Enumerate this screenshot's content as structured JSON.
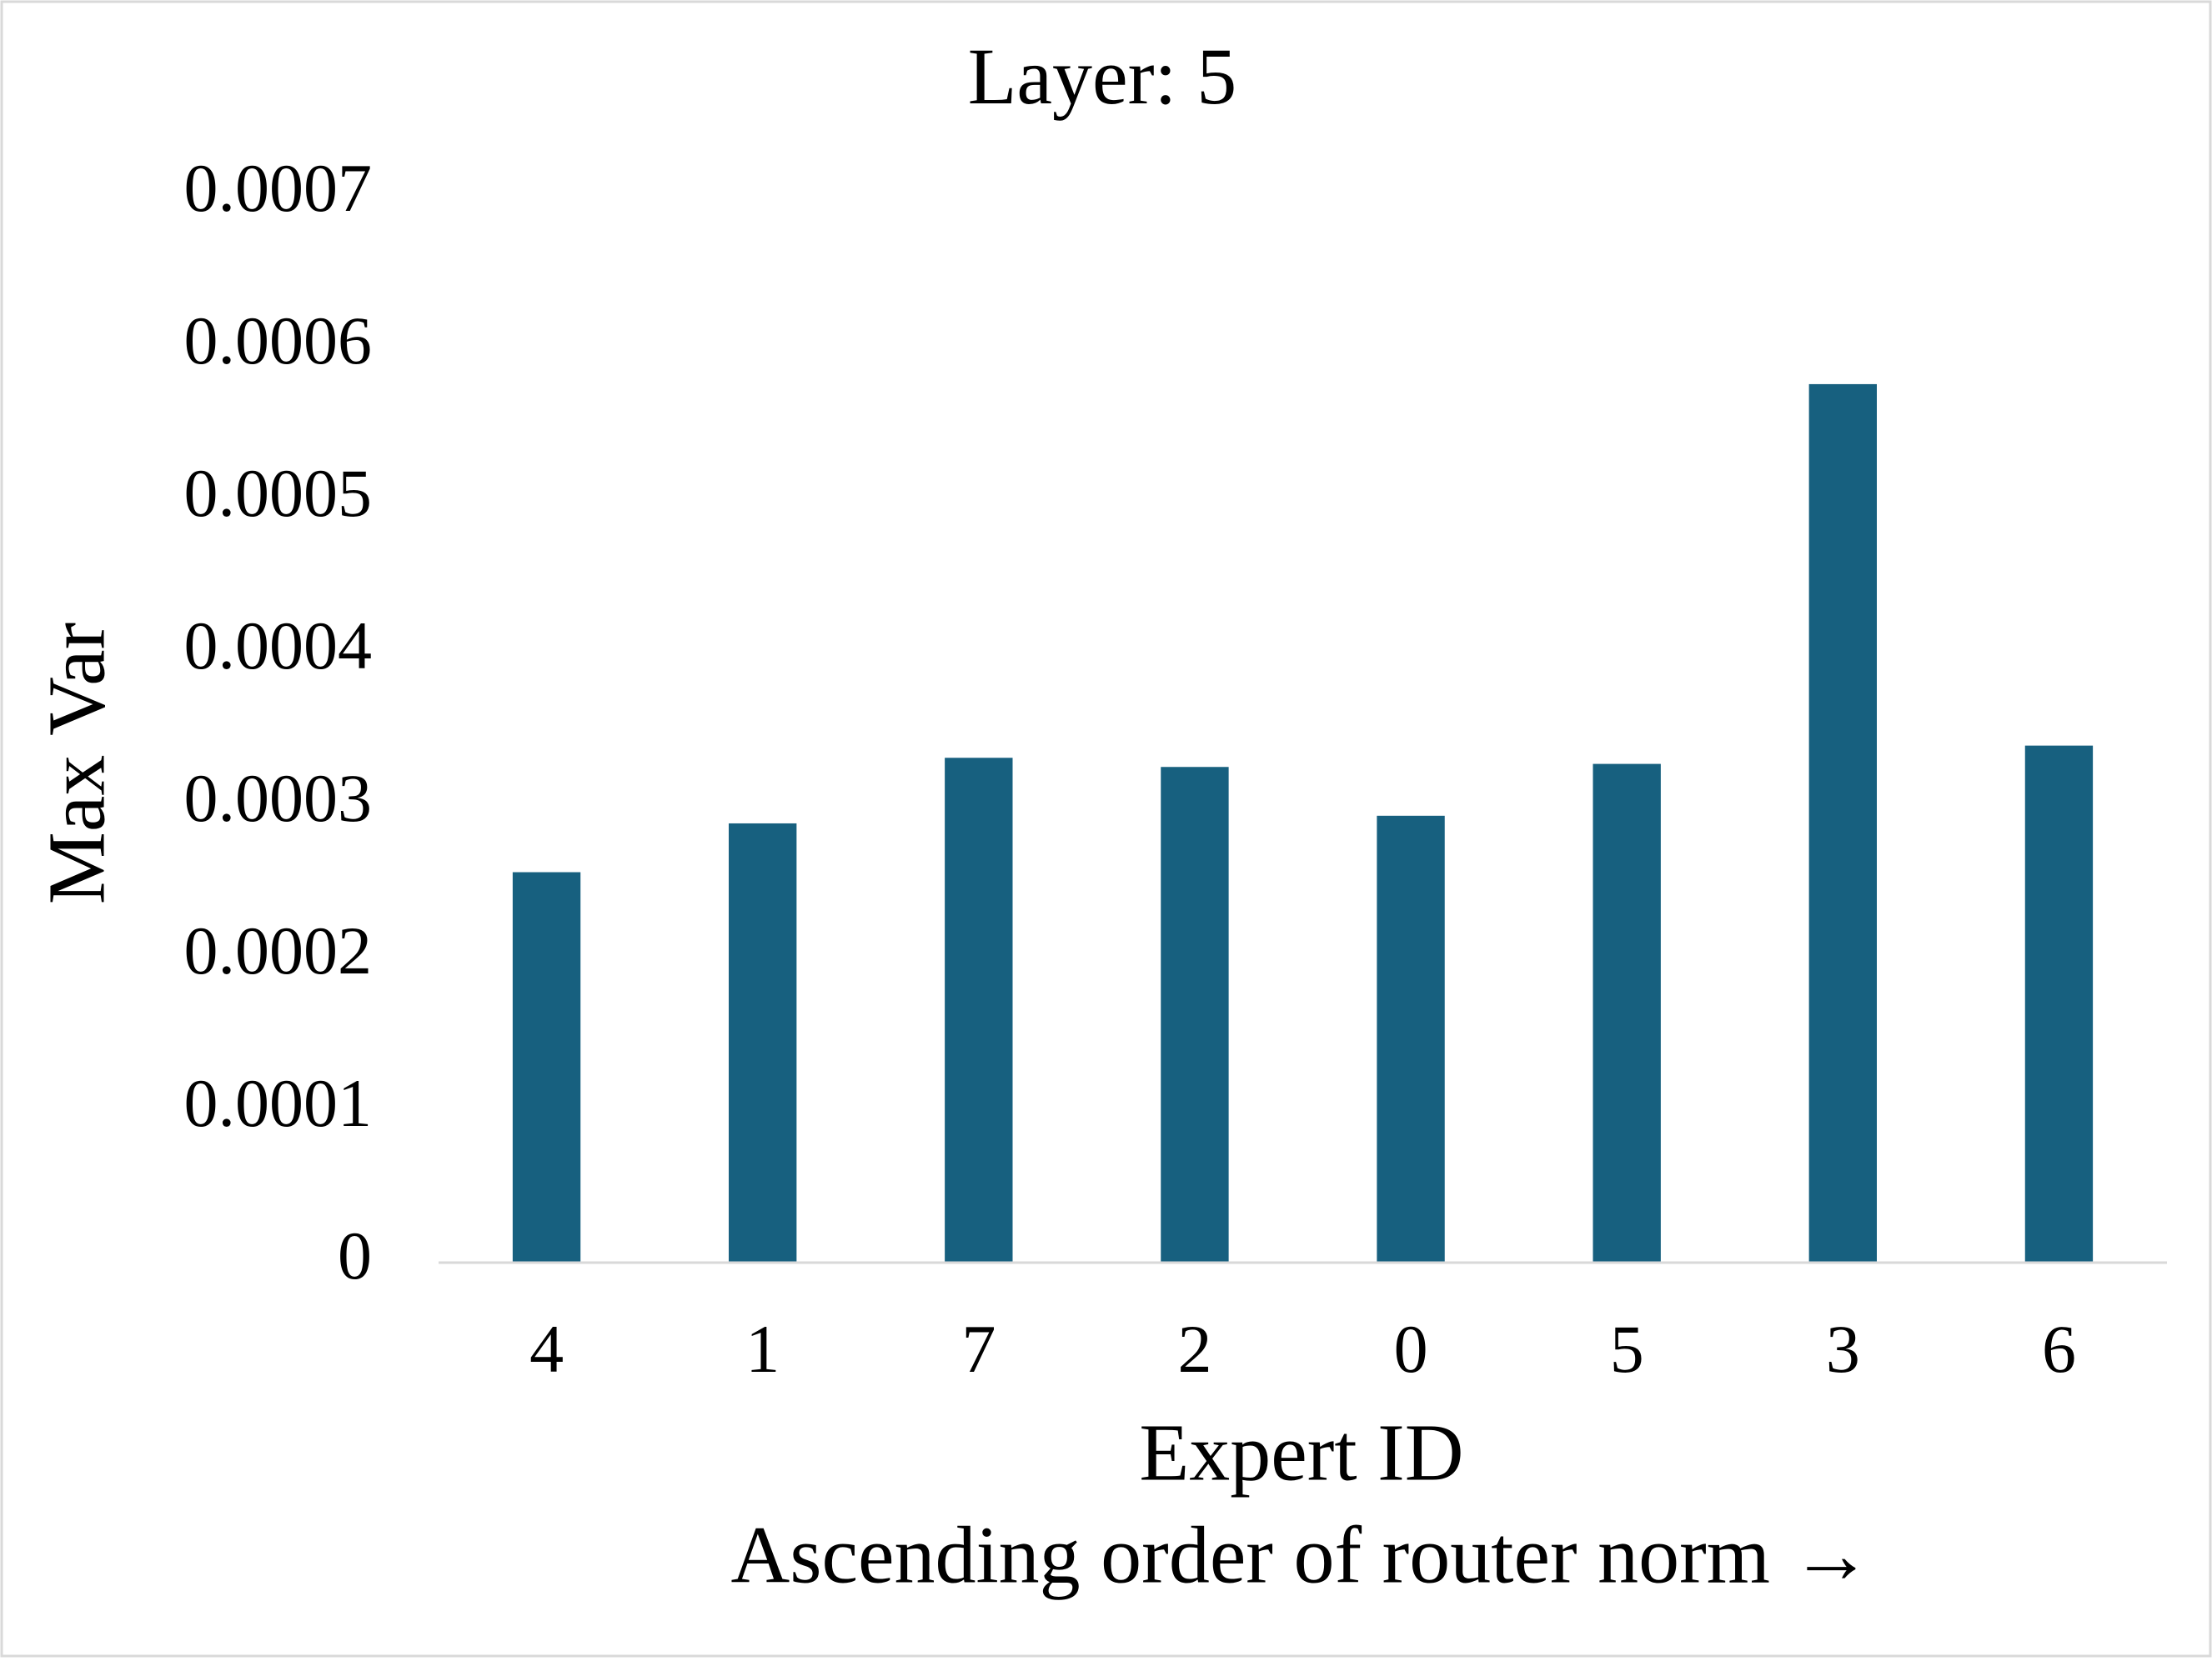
{
  "chart_data": {
    "type": "bar",
    "title": "Layer: 5",
    "ylabel": "Max Var",
    "xlabel": "Expert ID",
    "annotation": "Ascending order of router norm →",
    "categories": [
      "4",
      "1",
      "7",
      "2",
      "0",
      "5",
      "3",
      "6"
    ],
    "values": [
      0.000256,
      0.000288,
      0.000331,
      0.000325,
      0.000293,
      0.000327,
      0.000576,
      0.000339
    ],
    "color": "#17607f",
    "ylim": [
      0,
      0.0007
    ],
    "yticks": [
      0,
      0.0001,
      0.0002,
      0.0003,
      0.0004,
      0.0005,
      0.0006,
      0.0007
    ],
    "grid": false
  }
}
